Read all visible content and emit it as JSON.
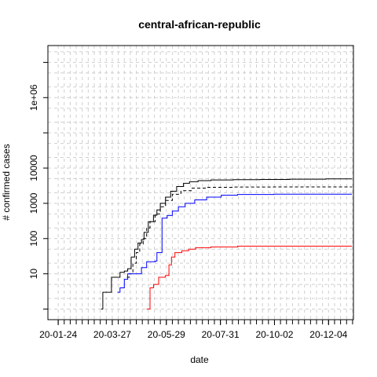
{
  "chart_data": {
    "type": "line",
    "title": "central-african-republic",
    "xlabel": "date",
    "ylabel": "# confirmed cases",
    "y_scale": "log10",
    "ylim": [
      0.5,
      30000000
    ],
    "xlim": [
      "2020-01-12",
      "2021-01-02"
    ],
    "grid": true,
    "x_ticks": [
      {
        "date": "2020-01-24",
        "label": "20-01-24"
      },
      {
        "date": "2020-03-27",
        "label": "20-03-27"
      },
      {
        "date": "2020-05-29",
        "label": "20-05-29"
      },
      {
        "date": "2020-07-31",
        "label": "20-07-31"
      },
      {
        "date": "2020-10-02",
        "label": "20-10-02"
      },
      {
        "date": "2020-12-04",
        "label": "20-12-04"
      }
    ],
    "y_ticks": [
      {
        "value": 10,
        "label": "10"
      },
      {
        "value": 100,
        "label": "100"
      },
      {
        "value": 1000,
        "label": "1000"
      },
      {
        "value": 10000,
        "label": "10000"
      },
      {
        "value": 1000000,
        "label": "1e+06"
      }
    ],
    "series": [
      {
        "color": "#000000",
        "dash": false,
        "points": [
          [
            "2020-03-14",
            1
          ],
          [
            "2020-03-16",
            1
          ],
          [
            "2020-03-16",
            3
          ],
          [
            "2020-03-26",
            3
          ],
          [
            "2020-03-26",
            8
          ],
          [
            "2020-04-03",
            8
          ],
          [
            "2020-04-05",
            11
          ],
          [
            "2020-04-10",
            12
          ],
          [
            "2020-04-14",
            14
          ],
          [
            "2020-04-18",
            30
          ],
          [
            "2020-04-22",
            50
          ],
          [
            "2020-04-26",
            75
          ],
          [
            "2020-04-30",
            94
          ],
          [
            "2020-05-03",
            150
          ],
          [
            "2020-05-08",
            300
          ],
          [
            "2020-05-14",
            460
          ],
          [
            "2020-05-18",
            650
          ],
          [
            "2020-05-22",
            1000
          ],
          [
            "2020-05-28",
            1500
          ],
          [
            "2020-06-03",
            2200
          ],
          [
            "2020-06-10",
            3000
          ],
          [
            "2020-06-18",
            3700
          ],
          [
            "2020-06-25",
            4100
          ],
          [
            "2020-07-05",
            4400
          ],
          [
            "2020-07-20",
            4600
          ],
          [
            "2020-08-15",
            4700
          ],
          [
            "2020-09-15",
            4750
          ],
          [
            "2020-10-20",
            4850
          ],
          [
            "2020-12-01",
            4920
          ],
          [
            "2020-12-31",
            4980
          ]
        ]
      },
      {
        "color": "#000000",
        "dash": true,
        "points": [
          [
            "2020-04-13",
            8
          ],
          [
            "2020-04-16",
            10
          ],
          [
            "2020-04-20",
            20
          ],
          [
            "2020-04-24",
            40
          ],
          [
            "2020-04-28",
            70
          ],
          [
            "2020-05-02",
            100
          ],
          [
            "2020-05-06",
            200
          ],
          [
            "2020-05-10",
            300
          ],
          [
            "2020-05-16",
            500
          ],
          [
            "2020-05-22",
            800
          ],
          [
            "2020-05-28",
            1200
          ],
          [
            "2020-06-05",
            1800
          ],
          [
            "2020-06-15",
            2300
          ],
          [
            "2020-06-28",
            2700
          ],
          [
            "2020-07-15",
            2850
          ],
          [
            "2020-08-15",
            2900
          ],
          [
            "2020-10-01",
            2920
          ],
          [
            "2020-12-31",
            2950
          ]
        ]
      },
      {
        "color": "#0000ff",
        "dash": false,
        "points": [
          [
            "2020-04-02",
            3
          ],
          [
            "2020-04-05",
            4
          ],
          [
            "2020-04-09",
            4
          ],
          [
            "2020-04-10",
            7
          ],
          [
            "2020-04-14",
            10
          ],
          [
            "2020-04-28",
            10
          ],
          [
            "2020-04-30",
            15
          ],
          [
            "2020-05-06",
            22
          ],
          [
            "2020-05-16",
            23
          ],
          [
            "2020-05-18",
            40
          ],
          [
            "2020-05-22",
            40
          ],
          [
            "2020-05-24",
            380
          ],
          [
            "2020-05-30",
            450
          ],
          [
            "2020-06-05",
            600
          ],
          [
            "2020-06-12",
            800
          ],
          [
            "2020-06-20",
            1000
          ],
          [
            "2020-07-01",
            1250
          ],
          [
            "2020-07-15",
            1500
          ],
          [
            "2020-08-01",
            1700
          ],
          [
            "2020-08-20",
            1780
          ],
          [
            "2020-10-01",
            1810
          ],
          [
            "2020-12-31",
            1830
          ]
        ]
      },
      {
        "color": "#ff0000",
        "dash": false,
        "points": [
          [
            "2020-05-06",
            1
          ],
          [
            "2020-05-09",
            1
          ],
          [
            "2020-05-10",
            4
          ],
          [
            "2020-05-14",
            5
          ],
          [
            "2020-05-20",
            8
          ],
          [
            "2020-05-28",
            9
          ],
          [
            "2020-06-01",
            18
          ],
          [
            "2020-06-04",
            30
          ],
          [
            "2020-06-08",
            40
          ],
          [
            "2020-06-16",
            45
          ],
          [
            "2020-06-24",
            50
          ],
          [
            "2020-07-02",
            55
          ],
          [
            "2020-07-20",
            58
          ],
          [
            "2020-08-20",
            61
          ],
          [
            "2020-12-31",
            62
          ]
        ]
      }
    ]
  }
}
